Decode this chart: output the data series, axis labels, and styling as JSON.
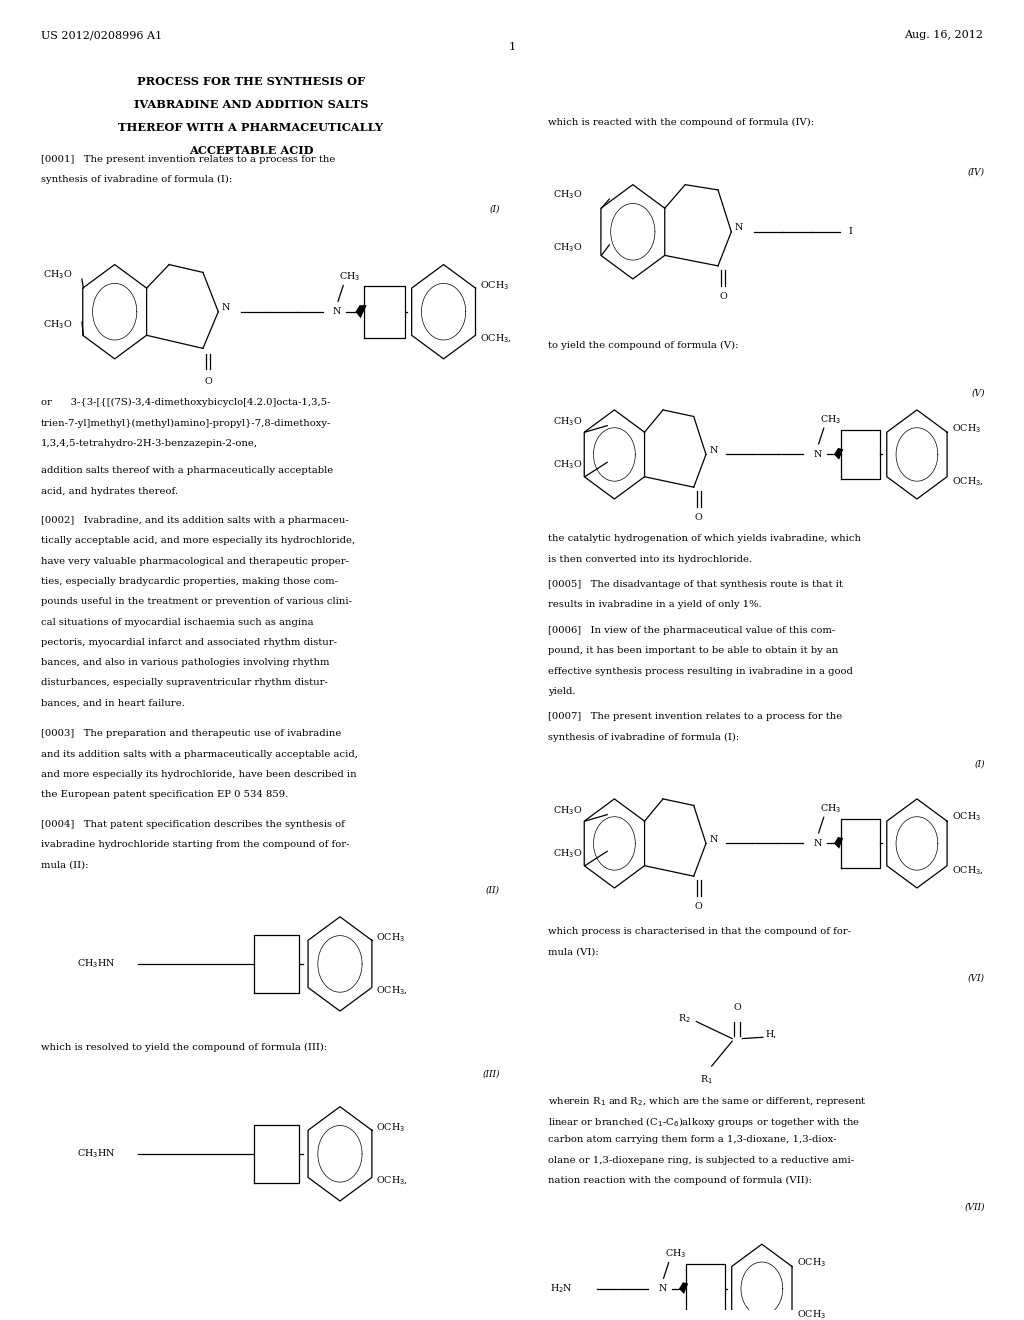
{
  "bg_color": "#ffffff",
  "header_left": "US 2012/0208996 A1",
  "header_right": "Aug. 16, 2012",
  "page_number": "1",
  "title_lines": [
    "PROCESS FOR THE SYNTHESIS OF",
    "IVABRADINE AND ADDITION SALTS",
    "THEREOF WITH A PHARMACEUTICALLY",
    "ACCEPTABLE ACID"
  ]
}
